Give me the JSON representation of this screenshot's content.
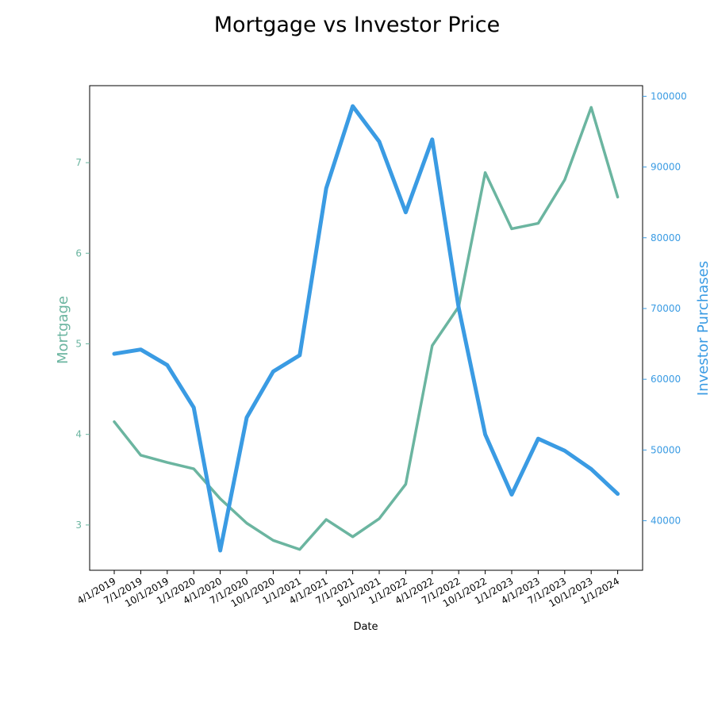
{
  "chart_data": {
    "type": "line",
    "title": "Mortgage vs Investor Price",
    "xlabel": "Date",
    "categories": [
      "4/1/2019",
      "7/1/2019",
      "10/1/2019",
      "1/1/2020",
      "4/1/2020",
      "7/1/2020",
      "10/1/2020",
      "1/1/2021",
      "4/1/2021",
      "7/1/2021",
      "10/1/2021",
      "1/1/2022",
      "4/1/2022",
      "7/1/2022",
      "10/1/2022",
      "1/1/2023",
      "4/1/2023",
      "7/1/2023",
      "10/1/2023",
      "1/1/2024"
    ],
    "series": [
      {
        "name": "Mortgage",
        "axis": "left",
        "color": "#6bb5a0",
        "values": [
          4.14,
          3.77,
          3.69,
          3.62,
          3.29,
          3.02,
          2.83,
          2.73,
          3.06,
          2.87,
          3.07,
          3.45,
          4.98,
          5.41,
          6.89,
          6.27,
          6.33,
          6.81,
          7.61,
          6.62
        ]
      },
      {
        "name": "Investor Purchases",
        "axis": "right",
        "color": "#3a9be3",
        "values": [
          63600,
          64200,
          62000,
          56000,
          35800,
          54600,
          61100,
          63400,
          87000,
          98600,
          93600,
          83600,
          93900,
          70100,
          52200,
          43700,
          51600,
          49900,
          47300,
          43800
        ]
      }
    ],
    "ylabel_left": "Mortgage",
    "ylim_left": [
      2.5,
      7.85
    ],
    "yticks_left": [
      3,
      4,
      5,
      6,
      7
    ],
    "ylabel_right": "Investor Purchases",
    "ylim_right": [
      33000,
      101500
    ],
    "yticks_right": [
      40000,
      50000,
      60000,
      70000,
      80000,
      90000,
      100000
    ],
    "grid": false,
    "legend": "none"
  }
}
